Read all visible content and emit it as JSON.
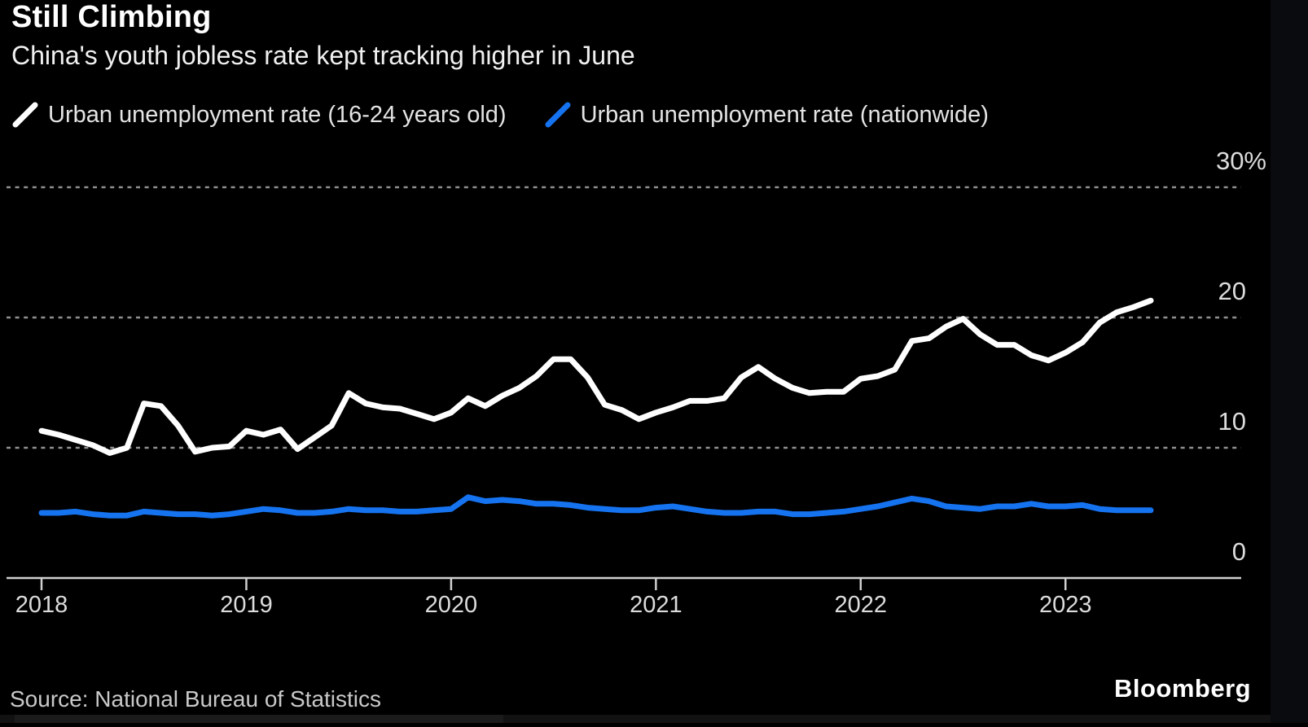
{
  "header": {
    "title": "Still Climbing",
    "subtitle": "China's youth jobless rate kept tracking higher in June"
  },
  "legend": {
    "items": [
      {
        "label": "Urban unemployment rate (16-24 years old)",
        "color": "#ffffff"
      },
      {
        "label": "Urban unemployment rate (nationwide)",
        "color": "#1673f0"
      }
    ]
  },
  "footer": {
    "source": "Source: National Bureau of Statistics",
    "brand": "Bloomberg"
  },
  "colors": {
    "background": "#000000",
    "youth_line": "#ffffff",
    "nationwide_line": "#1673f0",
    "gridline": "#909090",
    "axis": "#d0d0d0",
    "tick_label": "#dcdcdc"
  },
  "chart_data": {
    "type": "line",
    "title": "Still Climbing",
    "subtitle": "China's youth jobless rate kept tracking higher in June",
    "frequency": "monthly",
    "x_start": "2018-01",
    "x_end": "2023-06",
    "x_tick_labels": [
      "2018",
      "2019",
      "2020",
      "2021",
      "2022",
      "2023"
    ],
    "ylabel": "",
    "ylim": [
      0,
      30
    ],
    "y_ticks": [
      0,
      10,
      20,
      30
    ],
    "y_tick_labels": [
      "0",
      "10",
      "20",
      "30%"
    ],
    "gridlines": "dotted-horizontal",
    "legend_position": "top",
    "series": [
      {
        "name": "Urban unemployment rate (16-24 years old)",
        "color": "#ffffff",
        "values": [
          11.3,
          11.0,
          10.6,
          10.2,
          9.6,
          10.0,
          13.4,
          13.2,
          11.7,
          9.7,
          10.0,
          10.1,
          11.3,
          11.0,
          11.4,
          9.9,
          10.8,
          11.7,
          14.2,
          13.4,
          13.1,
          13.0,
          12.6,
          12.2,
          12.7,
          13.8,
          13.2,
          14.0,
          14.6,
          15.5,
          16.8,
          16.8,
          15.4,
          13.3,
          12.9,
          12.2,
          12.7,
          13.1,
          13.6,
          13.6,
          13.8,
          15.4,
          16.2,
          15.3,
          14.6,
          14.2,
          14.3,
          14.3,
          15.3,
          15.5,
          16.0,
          18.2,
          18.4,
          19.3,
          19.9,
          18.7,
          17.9,
          17.9,
          17.1,
          16.7,
          17.3,
          18.1,
          19.6,
          20.4,
          20.8,
          21.3
        ]
      },
      {
        "name": "Urban unemployment rate (nationwide)",
        "color": "#1673f0",
        "values": [
          5.0,
          5.0,
          5.1,
          4.9,
          4.8,
          4.8,
          5.1,
          5.0,
          4.9,
          4.9,
          4.8,
          4.9,
          5.1,
          5.3,
          5.2,
          5.0,
          5.0,
          5.1,
          5.3,
          5.2,
          5.2,
          5.1,
          5.1,
          5.2,
          5.3,
          6.2,
          5.9,
          6.0,
          5.9,
          5.7,
          5.7,
          5.6,
          5.4,
          5.3,
          5.2,
          5.2,
          5.4,
          5.5,
          5.3,
          5.1,
          5.0,
          5.0,
          5.1,
          5.1,
          4.9,
          4.9,
          5.0,
          5.1,
          5.3,
          5.5,
          5.8,
          6.1,
          5.9,
          5.5,
          5.4,
          5.3,
          5.5,
          5.5,
          5.7,
          5.5,
          5.5,
          5.6,
          5.3,
          5.2,
          5.2,
          5.2
        ]
      }
    ]
  }
}
